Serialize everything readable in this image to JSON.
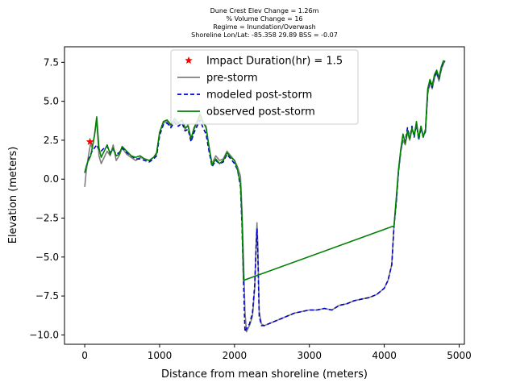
{
  "chart_data": {
    "type": "line",
    "title_lines": [
      "Dune Crest Elev Change = 1.26m",
      "% Volume Change = 16",
      "Regime = Inundation/Overwash",
      "Shoreline Lon/Lat: -85.358 29.89   BSS = -0.07"
    ],
    "xlabel": "Distance from mean shoreline (meters)",
    "ylabel": "Elevation (meters)",
    "xlim": [
      -270,
      5070
    ],
    "ylim": [
      -10.6,
      8.5
    ],
    "xticks": [
      0,
      1000,
      2000,
      3000,
      4000,
      5000
    ],
    "yticks": [
      -10.0,
      -7.5,
      -5.0,
      -2.5,
      0.0,
      2.5,
      5.0,
      7.5
    ],
    "ytick_labels": [
      "−10.0",
      "−7.5",
      "−5.0",
      "−2.5",
      "0.0",
      "2.5",
      "5.0",
      "7.5"
    ],
    "legend_position": "upper center",
    "colors": {
      "pre_storm": "#808080",
      "modeled": "#0000cc",
      "observed": "#008000",
      "impact": "#ff0000"
    },
    "impact_point": {
      "name": "Impact Duration(hr) = 1.5",
      "x": 70,
      "y": 2.4
    },
    "series": [
      {
        "name": "pre-storm",
        "style": "solid",
        "x": [
          0,
          20,
          40,
          60,
          80,
          100,
          130,
          160,
          190,
          220,
          260,
          300,
          340,
          380,
          420,
          460,
          500,
          560,
          620,
          680,
          740,
          800,
          860,
          920,
          960,
          1000,
          1050,
          1100,
          1150,
          1200,
          1250,
          1300,
          1340,
          1380,
          1420,
          1460,
          1500,
          1540,
          1580,
          1620,
          1660,
          1700,
          1750,
          1800,
          1850,
          1900,
          1950,
          2000,
          2040,
          2080,
          2100,
          2120,
          2140,
          2160,
          2200,
          2240,
          2270,
          2290,
          2300,
          2310,
          2330,
          2360,
          2400,
          2500,
          2600,
          2700,
          2800,
          2900,
          3000,
          3100,
          3200,
          3300,
          3400,
          3500,
          3600,
          3700,
          3800,
          3900,
          4000,
          4050,
          4100,
          4130,
          4160,
          4190,
          4220,
          4250,
          4280,
          4310,
          4340,
          4370,
          4400,
          4430,
          4460,
          4490,
          4520,
          4550,
          4580,
          4610,
          4640,
          4670,
          4700,
          4730,
          4760,
          4790,
          4810
        ],
        "y": [
          -0.5,
          0.5,
          1.2,
          1.8,
          2.3,
          2.0,
          2.8,
          3.8,
          1.5,
          1.0,
          1.4,
          1.8,
          1.5,
          2.2,
          1.2,
          1.5,
          2.0,
          1.6,
          1.4,
          1.2,
          1.4,
          1.3,
          1.2,
          1.4,
          1.6,
          3.0,
          3.6,
          3.7,
          3.4,
          3.9,
          3.6,
          3.8,
          3.2,
          3.5,
          2.5,
          3.2,
          3.6,
          4.0,
          3.6,
          3.4,
          2.0,
          1.0,
          1.5,
          1.2,
          1.3,
          1.8,
          1.5,
          1.2,
          0.8,
          0.2,
          -2.0,
          -5.0,
          -8.5,
          -9.8,
          -9.4,
          -8.8,
          -7.0,
          -4.0,
          -2.8,
          -4.0,
          -8.5,
          -9.3,
          -9.4,
          -9.2,
          -9.0,
          -8.8,
          -8.6,
          -8.5,
          -8.4,
          -8.4,
          -8.3,
          -8.4,
          -8.1,
          -8.0,
          -7.8,
          -7.7,
          -7.6,
          -7.4,
          -7.0,
          -6.5,
          -5.5,
          -3.0,
          -1.5,
          0.5,
          1.8,
          2.5,
          2.2,
          3.0,
          2.5,
          3.2,
          2.8,
          3.5,
          2.6,
          3.4,
          2.8,
          3.0,
          5.5,
          6.2,
          5.8,
          6.5,
          6.8,
          6.3,
          7.0,
          7.4,
          7.6
        ]
      },
      {
        "name": "modeled post-storm",
        "style": "dashed",
        "x": [
          0,
          20,
          40,
          60,
          80,
          100,
          130,
          160,
          190,
          220,
          260,
          300,
          340,
          380,
          420,
          460,
          500,
          560,
          620,
          680,
          740,
          800,
          860,
          920,
          960,
          1000,
          1050,
          1100,
          1150,
          1200,
          1250,
          1300,
          1340,
          1380,
          1420,
          1460,
          1500,
          1540,
          1580,
          1620,
          1660,
          1700,
          1750,
          1800,
          1850,
          1900,
          1950,
          2000,
          2040,
          2080,
          2100,
          2120,
          2140,
          2160,
          2200,
          2240,
          2270,
          2290,
          2300,
          2310,
          2330,
          2360,
          2400,
          2500,
          2600,
          2700,
          2800,
          2900,
          3000,
          3100,
          3200,
          3300,
          3400,
          3500,
          3600,
          3700,
          3800,
          3900,
          4000,
          4050,
          4100,
          4130,
          4160,
          4190,
          4220,
          4250,
          4280,
          4310,
          4340,
          4370,
          4400,
          4430,
          4460,
          4490,
          4520,
          4550,
          4580,
          4610,
          4640,
          4670,
          4700,
          4730,
          4760,
          4790,
          4810
        ],
        "y": [
          0.4,
          0.8,
          1.1,
          1.4,
          1.6,
          1.8,
          2.0,
          2.2,
          1.9,
          1.8,
          2.0,
          2.1,
          1.7,
          1.9,
          1.6,
          1.7,
          2.0,
          1.7,
          1.5,
          1.3,
          1.3,
          1.2,
          1.1,
          1.3,
          1.5,
          2.8,
          3.5,
          3.6,
          3.3,
          3.7,
          3.4,
          3.6,
          3.1,
          3.2,
          2.4,
          3.0,
          3.4,
          3.8,
          3.3,
          2.9,
          1.8,
          0.8,
          1.2,
          1.0,
          1.1,
          1.6,
          1.3,
          1.0,
          0.6,
          -0.5,
          -3.0,
          -6.5,
          -9.8,
          -9.6,
          -9.3,
          -8.6,
          -6.8,
          -4.2,
          -3.2,
          -4.5,
          -8.8,
          -9.4,
          -9.4,
          -9.2,
          -9.0,
          -8.8,
          -8.6,
          -8.5,
          -8.4,
          -8.4,
          -8.3,
          -8.4,
          -8.1,
          -8.0,
          -7.8,
          -7.7,
          -7.6,
          -7.4,
          -7.0,
          -6.5,
          -5.5,
          -3.0,
          -1.5,
          0.5,
          1.8,
          2.8,
          2.4,
          3.3,
          2.6,
          3.4,
          2.7,
          3.6,
          2.5,
          3.3,
          2.7,
          3.1,
          5.6,
          6.3,
          5.9,
          6.6,
          6.9,
          6.4,
          7.1,
          7.5,
          7.6
        ]
      },
      {
        "name": "observed post-storm",
        "style": "solid",
        "x": [
          0,
          20,
          40,
          60,
          80,
          100,
          130,
          160,
          190,
          220,
          260,
          300,
          340,
          380,
          420,
          460,
          500,
          560,
          620,
          680,
          740,
          800,
          860,
          920,
          960,
          1000,
          1050,
          1100,
          1150,
          1200,
          1250,
          1300,
          1340,
          1380,
          1420,
          1460,
          1500,
          1540,
          1580,
          1620,
          1660,
          1700,
          1750,
          1800,
          1850,
          1900,
          1950,
          2000,
          2040,
          2080,
          2100,
          2120,
          4130,
          4160,
          4190,
          4220,
          4250,
          4280,
          4310,
          4340,
          4370,
          4400,
          4430,
          4460,
          4490,
          4520,
          4550,
          4580,
          4610,
          4640,
          4670,
          4700,
          4730,
          4760,
          4790,
          4810
        ],
        "y": [
          0.4,
          0.8,
          1.1,
          1.3,
          1.5,
          2.0,
          2.8,
          4.0,
          2.0,
          1.4,
          1.8,
          2.2,
          1.6,
          2.0,
          1.5,
          1.6,
          2.1,
          1.8,
          1.5,
          1.4,
          1.5,
          1.3,
          1.2,
          1.4,
          1.7,
          3.0,
          3.7,
          3.8,
          3.5,
          3.9,
          3.6,
          3.8,
          3.3,
          3.4,
          2.6,
          3.3,
          3.7,
          4.2,
          3.7,
          3.3,
          2.1,
          0.9,
          1.3,
          1.0,
          1.2,
          1.7,
          1.4,
          1.2,
          0.6,
          -0.3,
          -2.5,
          -6.5,
          -3.0,
          -1.2,
          0.6,
          1.9,
          2.9,
          2.3,
          3.1,
          2.6,
          3.3,
          2.8,
          3.7,
          2.6,
          3.4,
          2.7,
          3.2,
          5.8,
          6.4,
          6.0,
          6.7,
          7.0,
          6.5,
          7.2,
          7.6,
          7.5
        ]
      }
    ]
  }
}
